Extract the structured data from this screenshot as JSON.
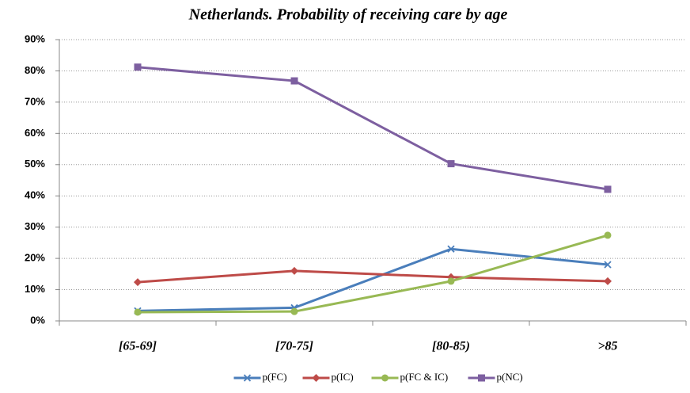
{
  "chart_data": {
    "type": "line",
    "title": "Netherlands. Probability of receiving care by age",
    "categories": [
      "[65-69]",
      "[70-75]",
      "[80-85)",
      ">85"
    ],
    "series": [
      {
        "name": "p(FC)",
        "color": "#4a7ebb",
        "marker": "x",
        "values": [
          3.2,
          4.2,
          23,
          18
        ]
      },
      {
        "name": "p(IC)",
        "color": "#be4b48",
        "marker": "diamond",
        "values": [
          12.4,
          16,
          14,
          12.7
        ]
      },
      {
        "name": "p(FC & IC)",
        "color": "#98b954",
        "marker": "circle",
        "values": [
          2.8,
          3.0,
          12.7,
          27.4
        ]
      },
      {
        "name": "p(NC)",
        "color": "#7d5fa0",
        "marker": "square",
        "values": [
          81.2,
          76.8,
          50.3,
          42.1
        ]
      }
    ],
    "ylim": [
      0,
      90
    ],
    "yticks": [
      {
        "value": 0,
        "label": "0%"
      },
      {
        "value": 10,
        "label": "10%"
      },
      {
        "value": 20,
        "label": "20%"
      },
      {
        "value": 30,
        "label": "30%"
      },
      {
        "value": 40,
        "label": "40%"
      },
      {
        "value": 50,
        "label": "50%"
      },
      {
        "value": 60,
        "label": "60%"
      },
      {
        "value": 70,
        "label": "70%"
      },
      {
        "value": 80,
        "label": "80%"
      },
      {
        "value": 90,
        "label": "90%"
      }
    ],
    "grid": true,
    "legend": "bottom"
  }
}
